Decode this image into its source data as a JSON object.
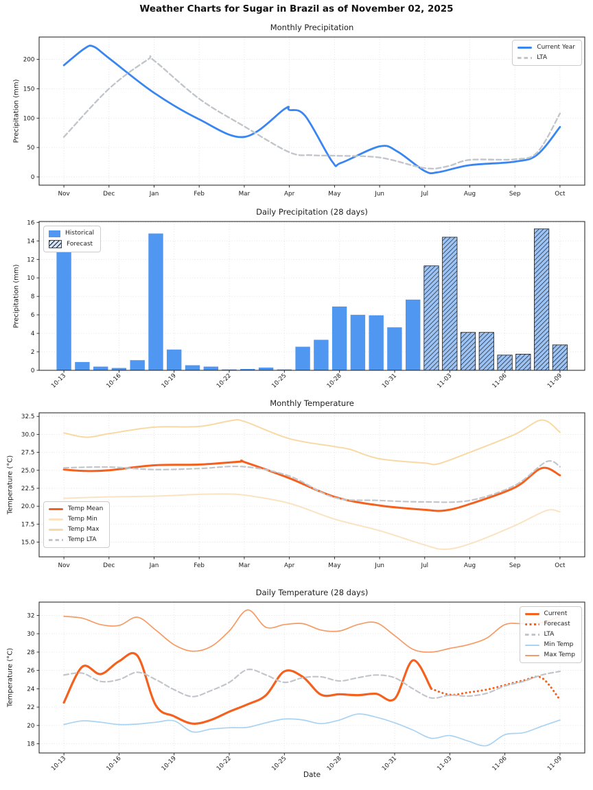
{
  "title": "Weather Charts for Sugar in Brazil as of November 02, 2025",
  "palette": {
    "current_blue": "#3a86f0",
    "lta_gray": "#c2c6cb",
    "historical_bar": "#4f97f1",
    "forecast_bar_fill": "#9cc3f5",
    "forecast_hatch": "#111111",
    "orange": "#f4611e",
    "temp_min_pale": "#fbe3c2",
    "temp_max_wheat": "#f8d9a3",
    "daily_min_blue": "#a9d3f2",
    "daily_max_salmon": "#f89a63",
    "grid": "#e2e4e8",
    "spine": "#1a1a1a"
  },
  "chart_data": [
    {
      "type": "line",
      "x_mode": "monthly",
      "title": "Monthly Precipitation",
      "ylabel": "Precipitation (mm)",
      "categories": [
        "Nov",
        "Dec",
        "Jan",
        "Feb",
        "Mar",
        "Apr",
        "May",
        "Jun",
        "Jul",
        "Aug",
        "Sep",
        "Oct"
      ],
      "yticks": [
        0,
        50,
        100,
        150,
        200
      ],
      "ytick_decimals": 0,
      "ylim": [
        -14,
        238
      ],
      "legend_pos": "top-right",
      "series": [
        {
          "name": "Current Year",
          "color": "#3a86f0",
          "style": "solid",
          "width": 2.8,
          "x": [
            0,
            0.45,
            0.65,
            1,
            2,
            3,
            4,
            4.9,
            5,
            5.35,
            5.95,
            6.15,
            7,
            7.4,
            8,
            8.3,
            9,
            10,
            10.5,
            11
          ],
          "values": [
            190,
            218,
            222,
            202,
            143,
            98,
            68,
            116,
            114,
            104,
            26,
            24,
            52,
            43,
            10,
            8,
            20,
            26,
            38,
            85
          ]
        },
        {
          "name": "LTA",
          "color": "#c2c6cb",
          "style": "dashed",
          "width": 2.4,
          "x": [
            0,
            1,
            1.85,
            2,
            3,
            4,
            5,
            5.5,
            6,
            7,
            8,
            8.5,
            9,
            10,
            10.5,
            11
          ],
          "values": [
            68,
            150,
            199,
            198,
            133,
            86,
            42,
            37,
            36,
            33,
            15,
            18,
            29,
            30,
            42,
            108
          ]
        }
      ],
      "legend": [
        {
          "label": "Current Year",
          "swatch": "line",
          "color": "#3a86f0",
          "lw": 3.5
        },
        {
          "label": "LTA",
          "swatch": "dashed",
          "color": "#c2c6cb",
          "lw": 3
        }
      ]
    },
    {
      "type": "bar",
      "x_mode": "daily",
      "title": "Daily Precipitation (28 days)",
      "ylabel": "Precipitation (mm)",
      "dates": [
        "10-13",
        "10-14",
        "10-15",
        "10-16",
        "10-17",
        "10-18",
        "10-19",
        "10-20",
        "10-21",
        "10-22",
        "10-23",
        "10-24",
        "10-25",
        "10-26",
        "10-27",
        "10-28",
        "10-29",
        "10-30",
        "10-31",
        "11-01",
        "11-02",
        "11-03",
        "11-04",
        "11-05",
        "11-06",
        "11-07",
        "11-08",
        "11-09"
      ],
      "values": [
        12.8,
        0.9,
        0.4,
        0.25,
        1.1,
        14.8,
        2.25,
        0.55,
        0.4,
        0.1,
        0.15,
        0.3,
        0.1,
        2.55,
        3.3,
        6.9,
        6.0,
        5.95,
        4.65,
        7.65,
        11.3,
        14.4,
        4.1,
        4.1,
        1.65,
        1.75,
        15.3,
        2.75
      ],
      "forecast_start_index": 20,
      "historical_color": "#4f97f1",
      "forecast_color": "#9cc3f5",
      "yticks": [
        0,
        2,
        4,
        6,
        8,
        10,
        12,
        14,
        16
      ],
      "ytick_decimals": 0,
      "ylim": [
        0,
        16.1
      ],
      "legend_pos": "top-left",
      "legend": [
        {
          "label": "Historical",
          "swatch": "box",
          "color": "#4f97f1"
        },
        {
          "label": "Forecast",
          "swatch": "hatchbox",
          "color": "#cfe2fa"
        }
      ]
    },
    {
      "type": "line",
      "x_mode": "monthly",
      "title": "Monthly Temperature",
      "ylabel": "Temperature (°C)",
      "categories": [
        "Nov",
        "Dec",
        "Jan",
        "Feb",
        "Mar",
        "Apr",
        "May",
        "Jun",
        "Jul",
        "Aug",
        "Sep",
        "Oct"
      ],
      "yticks": [
        15.0,
        17.5,
        20.0,
        22.5,
        25.0,
        27.5,
        30.0,
        32.5
      ],
      "ytick_decimals": 1,
      "ylim": [
        12.95,
        33.0
      ],
      "legend_pos": "bottom-left",
      "series": [
        {
          "name": "Temp Mean",
          "color": "#f4611e",
          "style": "solid",
          "width": 3,
          "x": [
            0,
            0.5,
            1,
            2,
            3,
            3.9,
            4,
            5,
            6,
            7,
            8,
            8.45,
            9,
            10,
            10.6,
            11
          ],
          "values": [
            25.1,
            24.9,
            25.0,
            25.7,
            25.8,
            26.2,
            26.15,
            23.9,
            21.3,
            20.1,
            19.5,
            19.4,
            20.3,
            22.6,
            25.3,
            24.3
          ]
        },
        {
          "name": "Temp Min",
          "color": "#fbe3c2",
          "style": "solid",
          "width": 2,
          "x": [
            0,
            1,
            2,
            3,
            3.5,
            4,
            5,
            6,
            7,
            8,
            8.45,
            9,
            10,
            10.7,
            11
          ],
          "values": [
            21.1,
            21.3,
            21.4,
            21.65,
            21.7,
            21.55,
            20.4,
            18.2,
            16.6,
            14.6,
            14.0,
            14.75,
            17.3,
            19.4,
            19.2
          ]
        },
        {
          "name": "Temp Max",
          "color": "#f8d9a3",
          "style": "solid",
          "width": 2,
          "x": [
            0,
            0.5,
            1,
            2,
            3,
            3.7,
            4,
            5,
            6,
            6.35,
            7,
            8,
            8.3,
            9,
            10,
            10.6,
            11
          ],
          "values": [
            30.2,
            29.6,
            30.1,
            31.0,
            31.1,
            31.9,
            31.8,
            29.4,
            28.3,
            27.9,
            26.6,
            26.0,
            25.9,
            27.5,
            30.0,
            32.0,
            30.3
          ]
        },
        {
          "name": "Temp LTA",
          "color": "#c2c6cb",
          "style": "dashed",
          "width": 2.2,
          "x": [
            0,
            1,
            2,
            3,
            4,
            5,
            6,
            7,
            8,
            9,
            10,
            10.7,
            11
          ],
          "values": [
            25.35,
            25.45,
            25.1,
            25.25,
            25.5,
            24.2,
            21.2,
            20.8,
            20.6,
            20.8,
            22.9,
            26.2,
            25.5
          ]
        }
      ],
      "legend": [
        {
          "label": "Temp Mean",
          "swatch": "line",
          "color": "#f4611e",
          "lw": 3.5
        },
        {
          "label": "Temp Min",
          "swatch": "line",
          "color": "#fbe3c2",
          "lw": 2.5
        },
        {
          "label": "Temp Max",
          "swatch": "line",
          "color": "#f8d9a3",
          "lw": 2.5
        },
        {
          "label": "Temp LTA",
          "swatch": "dashed",
          "color": "#c2c6cb",
          "lw": 3
        }
      ]
    },
    {
      "type": "line",
      "x_mode": "daily",
      "title": "Daily Temperature (28 days)",
      "ylabel": "Temperature (°C)",
      "xlabel": "Date",
      "dates": [
        "10-13",
        "10-14",
        "10-15",
        "10-16",
        "10-17",
        "10-18",
        "10-19",
        "10-20",
        "10-21",
        "10-22",
        "10-23",
        "10-24",
        "10-25",
        "10-26",
        "10-27",
        "10-28",
        "10-29",
        "10-30",
        "10-31",
        "11-01",
        "11-02",
        "11-03",
        "11-04",
        "11-05",
        "11-06",
        "11-07",
        "11-08",
        "11-09"
      ],
      "yticks": [
        18,
        20,
        22,
        24,
        26,
        28,
        30,
        32
      ],
      "ytick_decimals": 0,
      "ylim": [
        17.0,
        33.45
      ],
      "legend_pos": "top-right",
      "series": [
        {
          "name": "Current",
          "color": "#f4611e",
          "style": "solid",
          "width": 3.2,
          "start": 0,
          "values": [
            22.5,
            26.4,
            25.6,
            27.0,
            27.6,
            22.2,
            21.0,
            20.2,
            20.6,
            21.5,
            22.3,
            23.3,
            25.9,
            25.3,
            23.35,
            23.4,
            23.3,
            23.45,
            22.9,
            27.1,
            24.0
          ]
        },
        {
          "name": "Forecast",
          "color": "#f4611e",
          "style": "dotted",
          "width": 3,
          "start": 20,
          "values": [
            24.0,
            23.35,
            23.6,
            23.9,
            24.4,
            24.9,
            25.2,
            22.8
          ]
        },
        {
          "name": "LTA",
          "color": "#c2c6cb",
          "style": "dashed",
          "width": 2.2,
          "start": 0,
          "values": [
            25.5,
            25.7,
            24.8,
            25.0,
            25.8,
            25.0,
            23.9,
            23.15,
            23.8,
            24.7,
            26.1,
            25.5,
            24.7,
            25.2,
            25.3,
            24.85,
            25.2,
            25.5,
            25.2,
            24.0,
            23.0,
            23.3,
            23.2,
            23.5,
            24.3,
            24.8,
            25.5,
            25.9
          ]
        },
        {
          "name": "Min Temp",
          "color": "#a9d3f2",
          "style": "solid",
          "width": 1.7,
          "start": 0,
          "values": [
            20.1,
            20.5,
            20.35,
            20.1,
            20.15,
            20.35,
            20.5,
            19.3,
            19.6,
            19.75,
            19.8,
            20.3,
            20.7,
            20.6,
            20.2,
            20.6,
            21.25,
            20.9,
            20.3,
            19.5,
            18.6,
            18.9,
            18.3,
            17.8,
            19.0,
            19.2,
            19.9,
            20.6
          ]
        },
        {
          "name": "Max Temp",
          "color": "#f89a63",
          "style": "solid",
          "width": 1.7,
          "start": 0,
          "values": [
            31.9,
            31.7,
            31.0,
            30.9,
            31.8,
            30.4,
            28.8,
            28.1,
            28.6,
            30.3,
            32.6,
            30.7,
            31.0,
            31.1,
            30.4,
            30.3,
            31.0,
            31.2,
            29.8,
            28.3,
            28.0,
            28.4,
            28.8,
            29.5,
            31.0,
            31.1,
            31.2,
            31.9
          ]
        }
      ],
      "legend": [
        {
          "label": "Current",
          "swatch": "line",
          "color": "#f4611e",
          "lw": 3.5
        },
        {
          "label": "Forecast",
          "swatch": "dotted",
          "color": "#f4611e",
          "lw": 3
        },
        {
          "label": "LTA",
          "swatch": "dashed",
          "color": "#c2c6cb",
          "lw": 3
        },
        {
          "label": "Min Temp",
          "swatch": "line",
          "color": "#a9d3f2",
          "lw": 2
        },
        {
          "label": "Max Temp",
          "swatch": "line",
          "color": "#f89a63",
          "lw": 2
        }
      ]
    }
  ]
}
